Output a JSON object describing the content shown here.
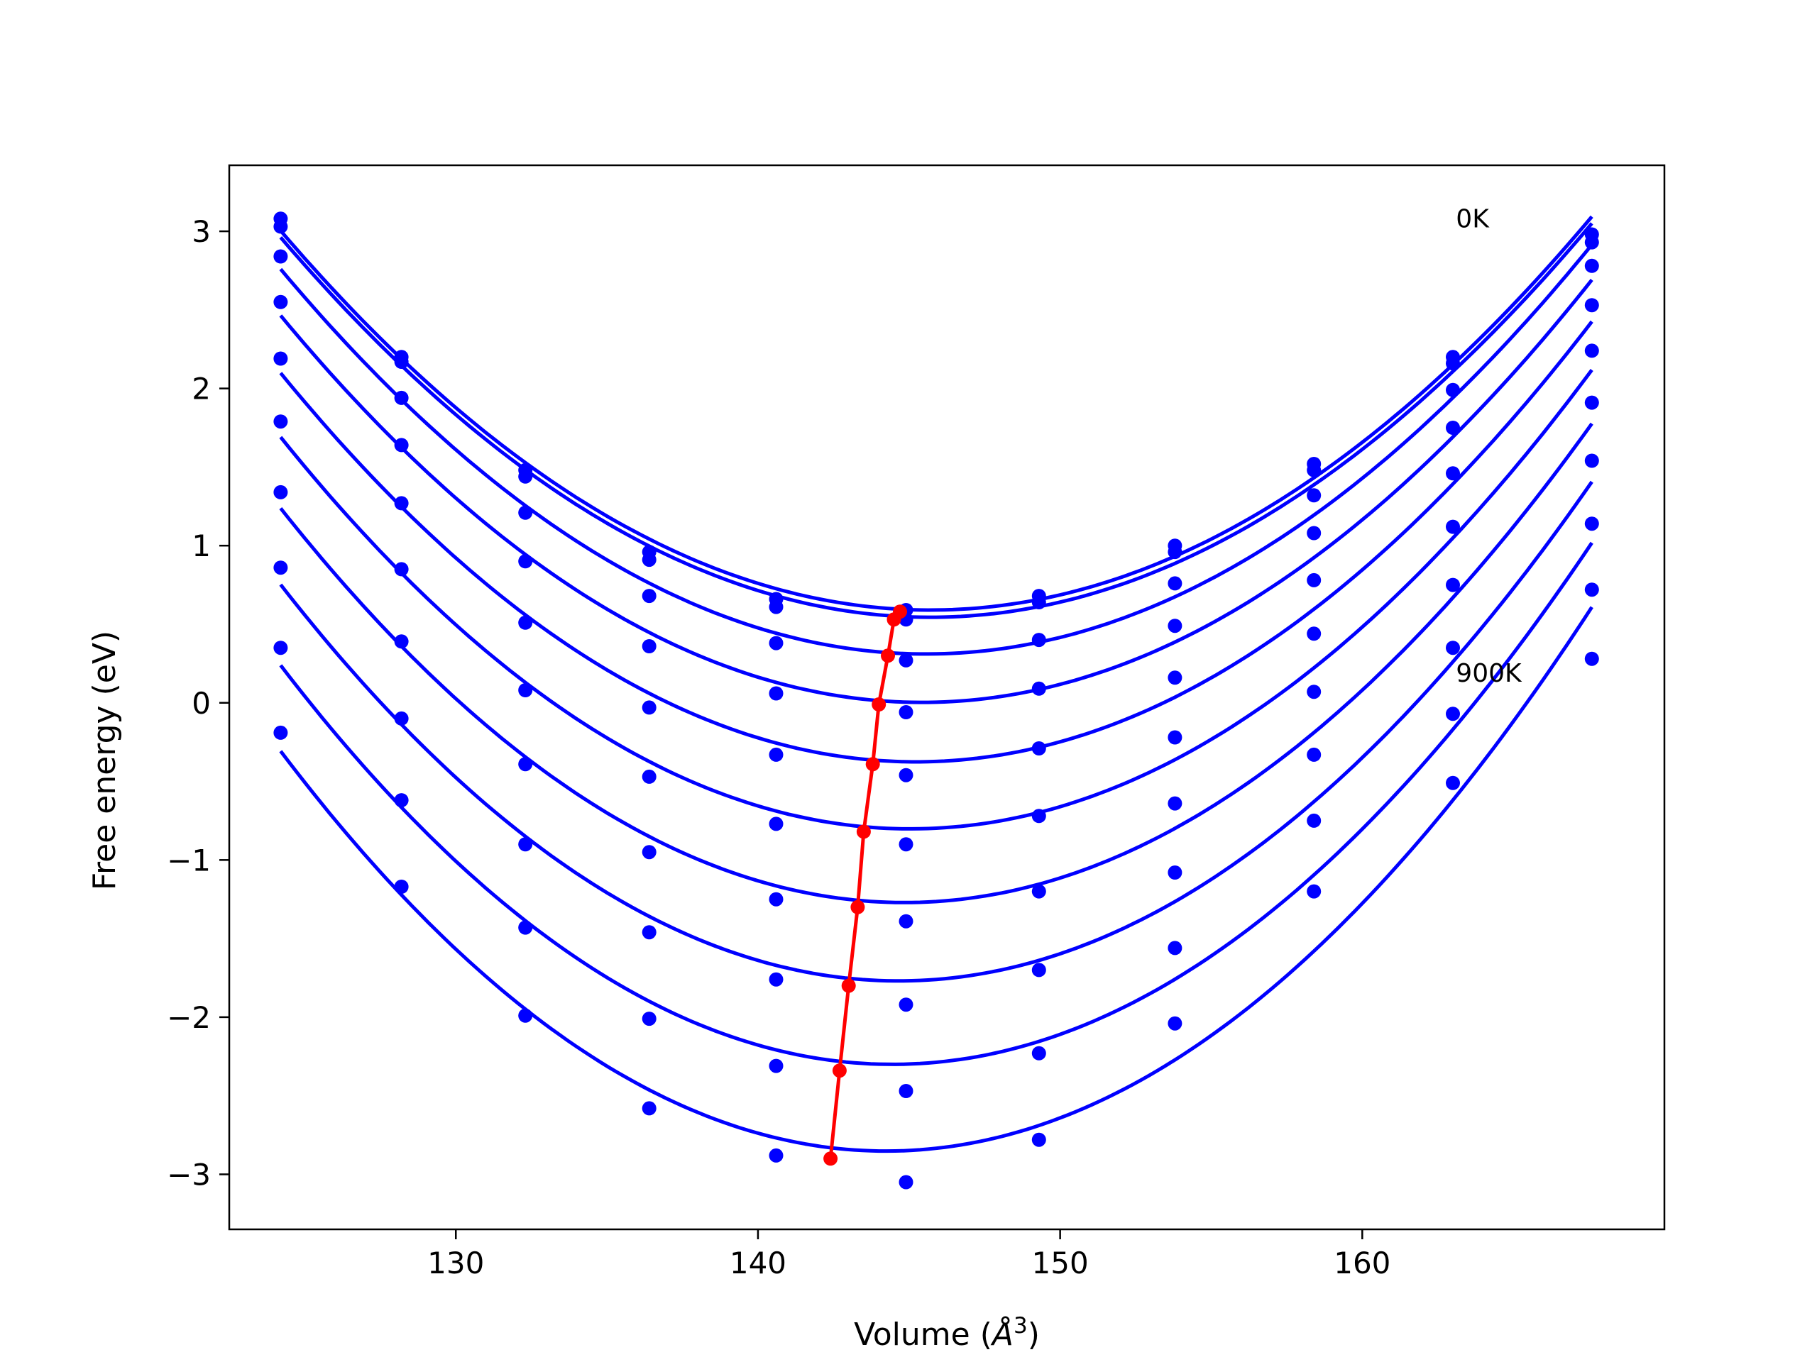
{
  "chart_data": {
    "type": "line",
    "title": "",
    "xlabel": "Volume (",
    "xlabel_symbol": "Å",
    "xlabel_exp": "3",
    "xlabel_close": ")",
    "ylabel": "Free energy (eV)",
    "xlim": [
      122.5,
      170
    ],
    "ylim": [
      -3.35,
      3.42
    ],
    "xticks": [
      130,
      140,
      150,
      160
    ],
    "xtick_labels": [
      "130",
      "140",
      "150",
      "160"
    ],
    "yticks": [
      -3,
      -2,
      -1,
      0,
      1,
      2,
      3
    ],
    "ytick_labels": [
      "−3",
      "−2",
      "−1",
      "0",
      "1",
      "2",
      "3"
    ],
    "grid": false,
    "annotations": [
      {
        "text": "0K",
        "x": 163.1,
        "y": 3.07
      },
      {
        "text": "900K",
        "x": 163.1,
        "y": 0.18
      }
    ],
    "volumes": [
      124.2,
      128.2,
      132.3,
      136.4,
      140.6,
      144.9,
      149.3,
      153.8,
      158.4,
      163.0,
      167.6
    ],
    "series": [
      {
        "values": [
          3.08,
          2.2,
          1.48,
          0.96,
          0.66,
          0.59,
          0.68,
          1.0,
          1.52,
          2.2,
          2.98
        ]
      },
      {
        "values": [
          3.03,
          2.17,
          1.44,
          0.91,
          0.61,
          0.53,
          0.64,
          0.96,
          1.48,
          2.16,
          2.93
        ]
      },
      {
        "values": [
          2.84,
          1.94,
          1.21,
          0.68,
          0.38,
          0.27,
          0.4,
          0.76,
          1.32,
          1.99,
          2.78
        ]
      },
      {
        "values": [
          2.55,
          1.64,
          0.9,
          0.36,
          0.06,
          -0.06,
          0.09,
          0.49,
          1.08,
          1.75,
          2.53
        ]
      },
      {
        "values": [
          2.19,
          1.27,
          0.51,
          -0.03,
          -0.33,
          -0.46,
          -0.29,
          0.16,
          0.78,
          1.46,
          2.24
        ]
      },
      {
        "values": [
          1.79,
          0.85,
          0.08,
          -0.47,
          -0.77,
          -0.9,
          -0.72,
          -0.22,
          0.44,
          1.12,
          1.91
        ]
      },
      {
        "values": [
          1.34,
          0.39,
          -0.39,
          -0.95,
          -1.25,
          -1.39,
          -1.2,
          -0.64,
          0.07,
          0.75,
          1.54
        ]
      },
      {
        "values": [
          0.86,
          -0.1,
          -0.9,
          -1.46,
          -1.76,
          -1.92,
          -1.7,
          -1.08,
          -0.33,
          0.35,
          1.14
        ]
      },
      {
        "values": [
          0.35,
          -0.62,
          -1.43,
          -2.01,
          -2.31,
          -2.47,
          -2.23,
          -1.56,
          -0.75,
          -0.07,
          0.72
        ]
      },
      {
        "values": [
          -0.19,
          -1.17,
          -1.99,
          -2.58,
          -2.88,
          -3.05,
          -2.78,
          -2.04,
          -1.2,
          -0.51,
          0.28
        ]
      }
    ],
    "minima": {
      "x": [
        144.7,
        144.5,
        144.3,
        144.0,
        143.8,
        143.5,
        143.3,
        143.0,
        142.7,
        142.4
      ],
      "y": [
        0.58,
        0.53,
        0.3,
        -0.01,
        -0.39,
        -0.82,
        -1.3,
        -1.8,
        -2.34,
        -2.9
      ]
    },
    "colors": {
      "curve": "#0000ff",
      "minima": "#ff0000",
      "axes": "#000000"
    }
  }
}
